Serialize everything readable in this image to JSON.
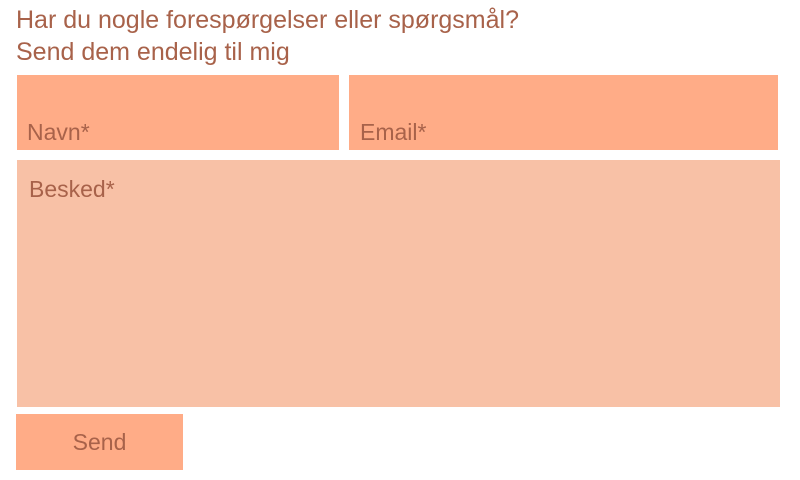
{
  "header": {
    "line1": "Har du nogle forespørgelser eller spørgsmål?",
    "line2": "Send dem endelig til mig"
  },
  "form": {
    "name_placeholder": "Navn*",
    "email_placeholder": "Email*",
    "message_placeholder": "Besked*",
    "name_value": "",
    "email_value": "",
    "message_value": "",
    "send_label": "Send"
  },
  "colors": {
    "text": "#a8624a",
    "input_background": "#ffac87",
    "message_background": "#f8c1a6",
    "page_background": "#ffffff"
  }
}
